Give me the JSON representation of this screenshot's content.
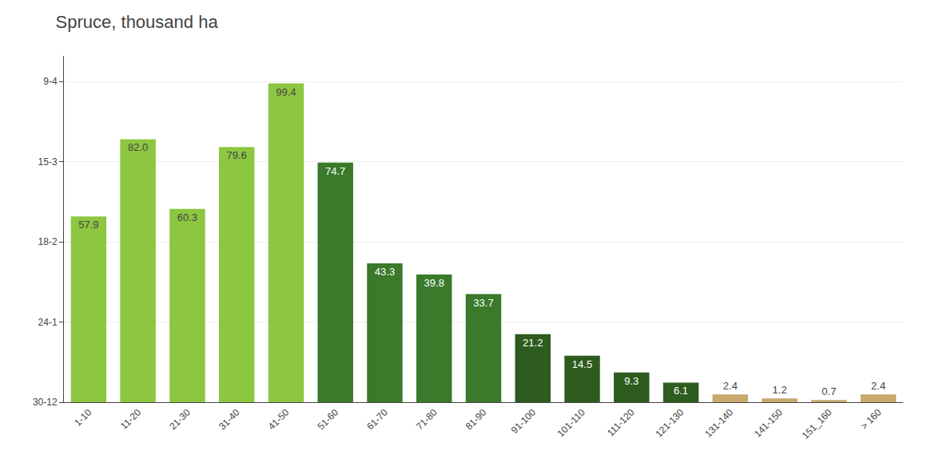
{
  "chart_data": {
    "type": "bar",
    "title": "Spruce, thousand ha",
    "categories": [
      "1-10",
      "11-20",
      "21-30",
      "31-40",
      "41-50",
      "51-60",
      "61-70",
      "71-80",
      "81-90",
      "91-100",
      "101-110",
      "111-120",
      "121-130",
      "131-140",
      "141-150",
      "151_160",
      "> 160"
    ],
    "values": [
      57.9,
      82.0,
      60.3,
      79.6,
      99.4,
      74.7,
      43.3,
      39.8,
      33.7,
      21.2,
      14.5,
      9.3,
      6.1,
      2.4,
      1.2,
      0.7,
      2.4
    ],
    "value_labels": [
      "57.9",
      "82.0",
      "60.3",
      "79.6",
      "99.4",
      "74.7",
      "43.3",
      "39.8",
      "33.7",
      "21.2",
      "14.5",
      "9.3",
      "6.1",
      "2.4",
      "1.2",
      "0.7",
      "2.4"
    ],
    "colors": [
      "#8DC641",
      "#8DC641",
      "#8DC641",
      "#8DC641",
      "#8DC641",
      "#3A7A2A",
      "#3A7A2A",
      "#3A7A2A",
      "#3A7A2A",
      "#2D5C1E",
      "#2D5C1E",
      "#2D5C1E",
      "#2D5C1E",
      "#C8A96E",
      "#C8A96E",
      "#C8A96E",
      "#C8A96E"
    ],
    "data_labels": true,
    "ylim": [
      0,
      108
    ],
    "yticks": [
      {
        "value": 0,
        "label": "30-12"
      },
      {
        "value": 25,
        "label": "24-1"
      },
      {
        "value": 50,
        "label": "18-2"
      },
      {
        "value": 75,
        "label": "15-3"
      },
      {
        "value": 100,
        "label": "9-4"
      }
    ],
    "grid": true
  }
}
